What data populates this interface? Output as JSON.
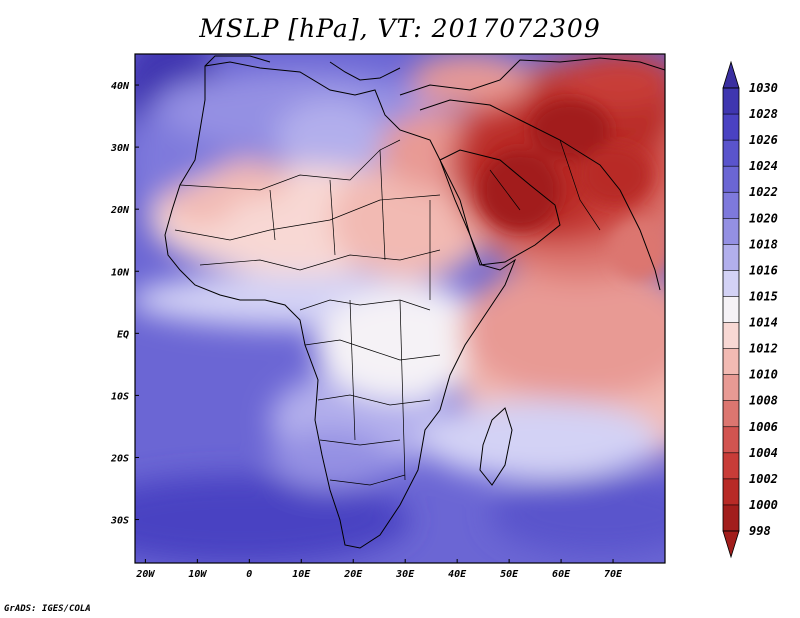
{
  "title": "MSLP [hPa], VT: 2017072309",
  "credit": "GrADS: IGES/COLA",
  "axes": {
    "lon_ticks": [
      "20W",
      "10W",
      "0",
      "10E",
      "20E",
      "30E",
      "40E",
      "50E",
      "60E",
      "70E"
    ],
    "lat_ticks": [
      "40N",
      "30N",
      "20N",
      "10N",
      "EQ",
      "10S",
      "20S",
      "30S"
    ]
  },
  "colorbar": {
    "levels": [
      "1030",
      "1028",
      "1026",
      "1024",
      "1022",
      "1020",
      "1018",
      "1016",
      "1015",
      "1014",
      "1012",
      "1010",
      "1008",
      "1006",
      "1004",
      "1002",
      "1000",
      "998"
    ],
    "colors": [
      "#3a2fa0",
      "#3f36b0",
      "#4a42c2",
      "#5a54cc",
      "#6b66d4",
      "#7e79dc",
      "#9490e3",
      "#b2afec",
      "#d3d2f5",
      "#f5f2f6",
      "#f8d8d4",
      "#f2bab3",
      "#e89a94",
      "#dc7670",
      "#d25450",
      "#c83c38",
      "#b82a26",
      "#a21e1c"
    ]
  },
  "map": {
    "lon_range": [
      -22,
      80
    ],
    "lat_range": [
      -37,
      45
    ]
  }
}
